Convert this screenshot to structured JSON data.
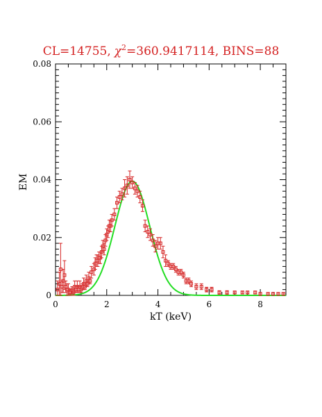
{
  "chart_data": {
    "type": "scatter",
    "title_prefix": "CL=14755,",
    "title_chi": "χ",
    "title_chi_sup": "2",
    "title_suffix": "=360.9417114, BINS=88",
    "xlabel": "kT (keV)",
    "ylabel": "EM",
    "xlim": [
      0,
      9
    ],
    "ylim": [
      0,
      0.08
    ],
    "x_ticks": [
      0,
      2,
      4,
      6,
      8
    ],
    "x_tick_labels": [
      "0",
      "2",
      "4",
      "6",
      "8"
    ],
    "y_ticks": [
      0,
      0.02,
      0.04,
      0.06,
      0.08
    ],
    "y_tick_labels": [
      "0",
      "0.02",
      "0.04",
      "0.06",
      "0.08"
    ],
    "grid": false,
    "colors": {
      "data": "#d42020",
      "model": "#22dd22",
      "title": "#d42020",
      "axes": "#000000"
    },
    "series": [
      {
        "kind": "data-with-errorbars",
        "x": [
          0.08,
          0.15,
          0.2,
          0.25,
          0.3,
          0.35,
          0.4,
          0.45,
          0.5,
          0.55,
          0.6,
          0.65,
          0.7,
          0.75,
          0.8,
          0.85,
          0.9,
          0.95,
          1.0,
          1.05,
          1.1,
          1.15,
          1.2,
          1.25,
          1.3,
          1.35,
          1.4,
          1.5,
          1.55,
          1.6,
          1.65,
          1.7,
          1.75,
          1.8,
          1.85,
          1.9,
          1.95,
          2.0,
          2.05,
          2.1,
          2.15,
          2.2,
          2.3,
          2.4,
          2.5,
          2.6,
          2.7,
          2.8,
          2.9,
          3.0,
          3.1,
          3.2,
          3.3,
          3.4,
          3.5,
          3.6,
          3.7,
          3.8,
          3.9,
          4.0,
          4.1,
          4.2,
          4.3,
          4.4,
          4.5,
          4.6,
          4.7,
          4.8,
          4.9,
          5.0,
          5.1,
          5.2,
          5.3,
          5.5,
          5.7,
          5.9,
          6.1,
          6.4,
          6.7,
          7.0,
          7.3,
          7.5,
          7.8,
          8.0,
          8.3,
          8.5,
          8.7,
          8.9
        ],
        "y": [
          0.002,
          0.004,
          0.009,
          0.003,
          0.005,
          0.007,
          0.003,
          0.002,
          0.002,
          0.001,
          0.001,
          0.002,
          0.001,
          0.003,
          0.002,
          0.003,
          0.002,
          0.003,
          0.002,
          0.003,
          0.004,
          0.003,
          0.005,
          0.004,
          0.006,
          0.005,
          0.008,
          0.009,
          0.011,
          0.012,
          0.012,
          0.013,
          0.013,
          0.015,
          0.017,
          0.016,
          0.019,
          0.021,
          0.022,
          0.024,
          0.024,
          0.026,
          0.028,
          0.032,
          0.034,
          0.035,
          0.037,
          0.038,
          0.04,
          0.039,
          0.037,
          0.036,
          0.034,
          0.031,
          0.024,
          0.022,
          0.021,
          0.019,
          0.017,
          0.018,
          0.018,
          0.015,
          0.012,
          0.011,
          0.01,
          0.01,
          0.009,
          0.008,
          0.008,
          0.007,
          0.005,
          0.005,
          0.004,
          0.003,
          0.003,
          0.002,
          0.002,
          0.001,
          0.001,
          0.001,
          0.001,
          0.001,
          0.001,
          0.0005,
          0.0005,
          0.0005,
          0.0005,
          0.0005
        ],
        "err": [
          0.003,
          0.004,
          0.009,
          0.002,
          0.004,
          0.005,
          0.002,
          0.002,
          0.002,
          0.001,
          0.001,
          0.001,
          0.001,
          0.002,
          0.001,
          0.002,
          0.001,
          0.002,
          0.001,
          0.001,
          0.002,
          0.001,
          0.002,
          0.001,
          0.002,
          0.001,
          0.002,
          0.002,
          0.002,
          0.002,
          0.002,
          0.002,
          0.002,
          0.002,
          0.002,
          0.002,
          0.002,
          0.002,
          0.002,
          0.002,
          0.002,
          0.002,
          0.002,
          0.002,
          0.002,
          0.002,
          0.003,
          0.003,
          0.003,
          0.002,
          0.002,
          0.002,
          0.002,
          0.002,
          0.002,
          0.002,
          0.002,
          0.002,
          0.002,
          0.002,
          0.002,
          0.002,
          0.002,
          0.001,
          0.001,
          0.001,
          0.001,
          0.001,
          0.001,
          0.001,
          0.001,
          0.001,
          0.001,
          0.001,
          0.001,
          0.0008,
          0.0008,
          0.0006,
          0.0006,
          0.0005,
          0.0005,
          0.0005,
          0.0005,
          0.0005,
          0.0005,
          0.0005,
          0.0005,
          0.0005
        ]
      },
      {
        "kind": "model-curve",
        "function": "gaussian",
        "amplitude": 0.0395,
        "center": 3.0,
        "sigma": 0.68,
        "x_range": [
          0,
          9
        ]
      }
    ]
  }
}
